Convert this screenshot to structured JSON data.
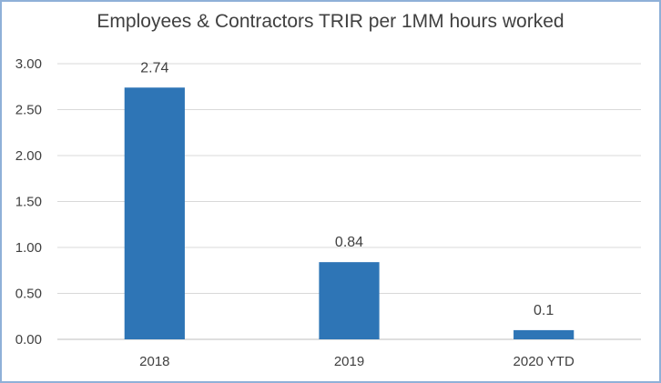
{
  "chart_data": {
    "type": "bar",
    "title": "Employees & Contractors TRIR per 1MM hours worked",
    "categories": [
      "2018",
      "2019",
      "2020 YTD"
    ],
    "values": [
      2.74,
      0.84,
      0.1
    ],
    "data_labels": [
      "2.74",
      "0.84",
      "0.1"
    ],
    "ylim": [
      0,
      3
    ],
    "yticks": [
      "0.00",
      "0.50",
      "1.00",
      "1.50",
      "2.00",
      "2.50",
      "3.00"
    ],
    "xlabel": "",
    "ylabel": "",
    "grid": true,
    "legend": "none",
    "bar_color": "#2e75b6"
  }
}
